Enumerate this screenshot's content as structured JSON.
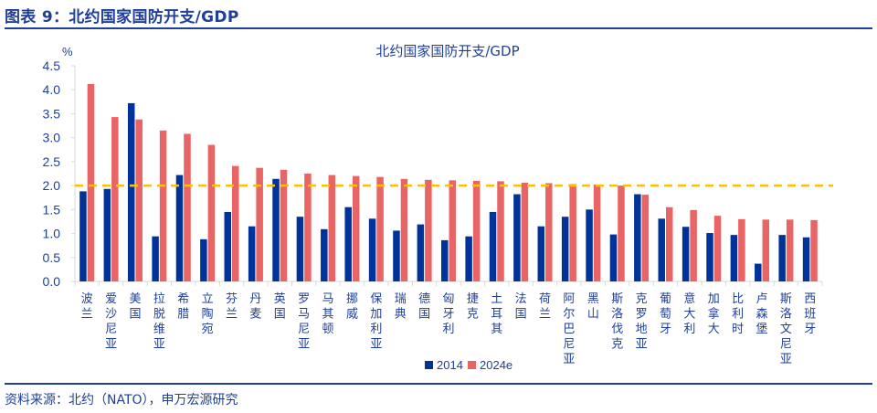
{
  "header": {
    "figure_title": "图表 9：北约国家国防开支/GDP"
  },
  "footer": {
    "source": "资料来源：北约（NATO），申万宏源研究"
  },
  "colors": {
    "series_2014": "#003399",
    "series_2024e": "#e96464",
    "target_line": "#ffc000",
    "text": "#1f3f9a"
  },
  "chart_data": {
    "type": "bar",
    "title": "北约国家国防开支/GDP",
    "ylabel": "%",
    "xlabel": "",
    "ylim": [
      0,
      4.5
    ],
    "yticks": [
      "0.0",
      "0.5",
      "1.0",
      "1.5",
      "2.0",
      "2.5",
      "3.0",
      "3.5",
      "4.0",
      "4.5"
    ],
    "grid": false,
    "legend_position": "bottom",
    "reference_line": {
      "value": 2.0,
      "style": "dashed"
    },
    "categories": [
      "波兰",
      "爱沙尼亚",
      "美国",
      "拉脱维亚",
      "希腊",
      "立陶宛",
      "芬兰",
      "丹麦",
      "英国",
      "罗马尼亚",
      "马其顿",
      "挪威",
      "保加利亚",
      "瑞典",
      "德国",
      "匈牙利",
      "捷克",
      "土耳其",
      "法国",
      "荷兰",
      "阿尔巴尼亚",
      "黑山",
      "斯洛伐克",
      "克罗地亚",
      "葡萄牙",
      "意大利",
      "加拿大",
      "比利时",
      "卢森堡",
      "斯洛文尼亚",
      "西班牙"
    ],
    "series": [
      {
        "name": "2014",
        "values": [
          1.88,
          1.93,
          3.72,
          0.94,
          2.22,
          0.88,
          1.45,
          1.15,
          2.14,
          1.35,
          1.09,
          1.55,
          1.31,
          1.06,
          1.19,
          0.86,
          0.94,
          1.45,
          1.82,
          1.15,
          1.35,
          1.5,
          0.98,
          1.82,
          1.31,
          1.14,
          1.01,
          0.97,
          0.37,
          0.97,
          0.92
        ]
      },
      {
        "name": "2024e",
        "values": [
          4.12,
          3.43,
          3.38,
          3.15,
          3.08,
          2.85,
          2.41,
          2.37,
          2.33,
          2.25,
          2.22,
          2.2,
          2.18,
          2.14,
          2.12,
          2.11,
          2.1,
          2.09,
          2.06,
          2.05,
          2.03,
          2.02,
          2.0,
          1.81,
          1.55,
          1.49,
          1.37,
          1.3,
          1.29,
          1.29,
          1.28
        ]
      }
    ]
  }
}
